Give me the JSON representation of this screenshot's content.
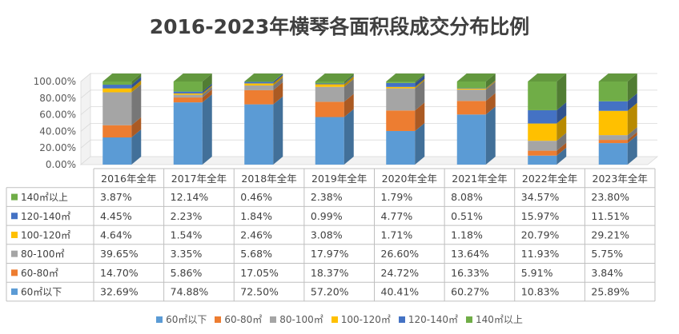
{
  "chart_data": {
    "type": "bar",
    "stacked": true,
    "view": "3d-column",
    "title": "2016-2023年横琴各面积段成交分布比例",
    "categories": [
      "2016年全年",
      "2017年全年",
      "2018年全年",
      "2019年全年",
      "2020年全年",
      "2021年全年",
      "2022年全年",
      "2023年全年"
    ],
    "ylim": [
      0,
      100
    ],
    "yticks": [
      "0.00%",
      "20.00%",
      "40.00%",
      "60.00%",
      "80.00%",
      "100.00%"
    ],
    "gridlines": true,
    "legend_position": "bottom",
    "series": [
      {
        "name": "60㎡以下",
        "color": "#5b9bd5",
        "values": [
          32.69,
          74.88,
          72.5,
          57.2,
          40.41,
          60.27,
          10.83,
          25.89
        ],
        "labels": [
          "32.69%",
          "74.88%",
          "72.50%",
          "57.20%",
          "40.41%",
          "60.27%",
          "10.83%",
          "25.89%"
        ]
      },
      {
        "name": "60-80㎡",
        "color": "#ed7d31",
        "values": [
          14.7,
          5.86,
          17.05,
          18.37,
          24.72,
          16.33,
          5.91,
          3.84
        ],
        "labels": [
          "14.70%",
          "5.86%",
          "17.05%",
          "18.37%",
          "24.72%",
          "16.33%",
          "5.91%",
          "3.84%"
        ]
      },
      {
        "name": "80-100㎡",
        "color": "#a5a5a5",
        "values": [
          39.65,
          3.35,
          5.68,
          17.97,
          26.6,
          13.64,
          11.93,
          5.75
        ],
        "labels": [
          "39.65%",
          "3.35%",
          "5.68%",
          "17.97%",
          "26.60%",
          "13.64%",
          "11.93%",
          "5.75%"
        ]
      },
      {
        "name": "100-120㎡",
        "color": "#ffc000",
        "values": [
          4.64,
          1.54,
          2.46,
          3.08,
          1.71,
          1.18,
          20.79,
          29.21
        ],
        "labels": [
          "4.64%",
          "1.54%",
          "2.46%",
          "3.08%",
          "1.71%",
          "1.18%",
          "20.79%",
          "29.21%"
        ]
      },
      {
        "name": "120-140㎡",
        "color": "#4472c4",
        "values": [
          4.45,
          2.23,
          1.84,
          0.99,
          4.77,
          0.51,
          15.97,
          11.51
        ],
        "labels": [
          "4.45%",
          "2.23%",
          "1.84%",
          "0.99%",
          "4.77%",
          "0.51%",
          "15.97%",
          "11.51%"
        ]
      },
      {
        "name": "140㎡以上",
        "color": "#70ad47",
        "values": [
          3.87,
          12.14,
          0.46,
          2.38,
          1.79,
          8.08,
          34.57,
          23.8
        ],
        "labels": [
          "3.87%",
          "12.14%",
          "0.46%",
          "2.38%",
          "1.79%",
          "8.08%",
          "34.57%",
          "23.80%"
        ]
      }
    ]
  }
}
